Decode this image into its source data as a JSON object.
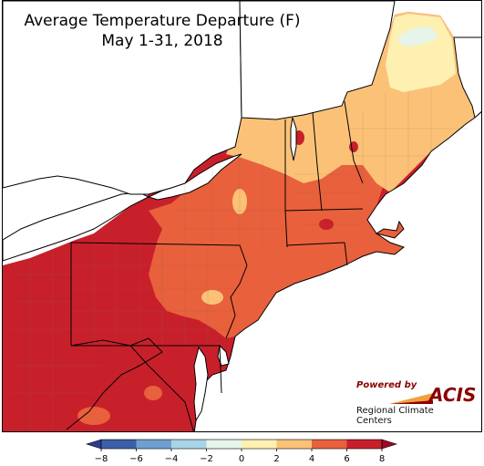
{
  "title": {
    "line1": "Average Temperature Departure (F)",
    "line2": "May 1-31, 2018"
  },
  "credit": {
    "powered_by": "Powered by",
    "acis": "ACIS",
    "org": "Regional Climate Centers"
  },
  "legend": {
    "ticks": [
      "−8",
      "−6",
      "−4",
      "−2",
      "0",
      "2",
      "4",
      "6",
      "8"
    ],
    "bins": [
      {
        "from": -8,
        "to": -6,
        "color": "#3b5fa8"
      },
      {
        "from": -6,
        "to": -4,
        "color": "#6f9fd0"
      },
      {
        "from": -4,
        "to": -2,
        "color": "#a8d5e6"
      },
      {
        "from": -2,
        "to": 0,
        "color": "#e6f4ea"
      },
      {
        "from": 0,
        "to": 2,
        "color": "#fdf0b0"
      },
      {
        "from": 2,
        "to": 4,
        "color": "#fbc277"
      },
      {
        "from": 4,
        "to": 6,
        "color": "#e8603c"
      },
      {
        "from": 6,
        "to": 8,
        "color": "#c8202b"
      }
    ],
    "low_arrow_color": "#2b3d8f",
    "high_arrow_color": "#9e0a25"
  },
  "colors": {
    "water": "#ffffff",
    "outside": "#ffffff",
    "boundary": "#000000",
    "county": "#8a6a4a"
  }
}
